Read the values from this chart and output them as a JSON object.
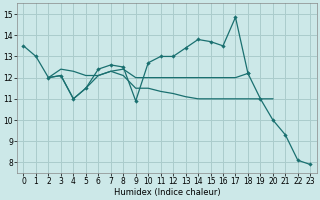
{
  "xlabel": "Humidex (Indice chaleur)",
  "background_color": "#cce8e8",
  "grid_color": "#aacccc",
  "line_color": "#1a7070",
  "xlim": [
    -0.5,
    23.5
  ],
  "ylim": [
    7.5,
    15.5
  ],
  "yticks": [
    8,
    9,
    10,
    11,
    12,
    13,
    14,
    15
  ],
  "xticks": [
    0,
    1,
    2,
    3,
    4,
    5,
    6,
    7,
    8,
    9,
    10,
    11,
    12,
    13,
    14,
    15,
    16,
    17,
    18,
    19,
    20,
    21,
    22,
    23
  ],
  "s1_x": [
    0,
    1,
    2,
    3,
    4,
    5,
    6,
    7,
    8,
    9,
    10,
    11,
    12,
    13,
    14,
    15,
    16,
    17,
    18
  ],
  "s1_y": [
    13.5,
    13.0,
    12.0,
    12.1,
    11.0,
    11.5,
    12.4,
    12.6,
    12.5,
    10.9,
    12.7,
    13.0,
    13.0,
    13.4,
    13.8,
    13.7,
    13.5,
    14.85,
    12.2
  ],
  "s2_x": [
    2,
    3,
    4,
    5,
    6,
    7,
    8,
    9,
    10,
    11,
    12,
    13,
    14,
    15,
    16,
    17,
    18
  ],
  "s2_y": [
    12.0,
    12.4,
    12.3,
    12.1,
    12.1,
    12.3,
    12.4,
    12.0,
    12.0,
    12.0,
    12.0,
    12.0,
    12.0,
    12.0,
    12.0,
    12.0,
    12.2
  ],
  "s3_x": [
    2,
    3,
    4,
    5,
    6,
    7,
    8,
    9,
    10,
    11,
    12,
    13,
    14,
    15,
    16,
    17,
    18,
    19,
    20
  ],
  "s3_y": [
    12.0,
    12.1,
    11.0,
    11.5,
    12.1,
    12.3,
    12.1,
    11.5,
    11.5,
    11.35,
    11.25,
    11.1,
    11.0,
    11.0,
    11.0,
    11.0,
    11.0,
    11.0,
    11.0
  ],
  "s4_x": [
    18,
    19,
    20,
    21,
    22,
    23
  ],
  "s4_y": [
    12.2,
    11.0,
    10.0,
    9.3,
    8.1,
    7.9
  ]
}
